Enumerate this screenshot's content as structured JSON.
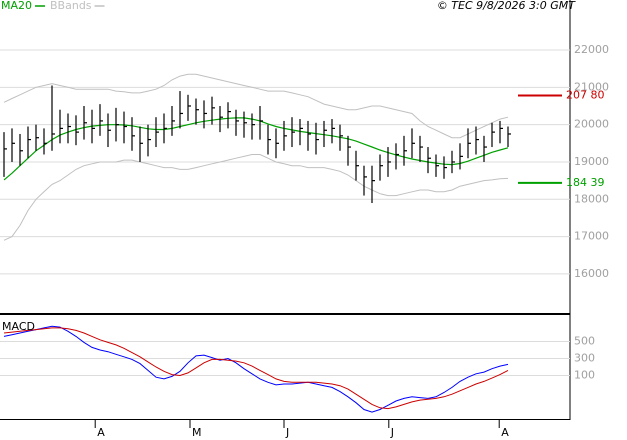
{
  "chart_data": [
    {
      "type": "ohlc",
      "source": "© TEC 9/8/2026 3:0 GMT",
      "x": [
        0,
        1,
        2,
        3,
        4,
        5,
        6,
        7,
        8,
        9,
        10,
        11,
        12,
        13,
        14,
        15,
        16,
        17,
        18,
        19,
        20,
        21,
        22,
        23,
        24,
        25,
        26,
        27,
        28,
        29,
        30,
        31,
        32,
        33,
        34,
        35,
        36,
        37,
        38,
        39,
        40,
        41,
        42,
        43,
        44,
        45,
        46,
        47,
        48,
        49,
        50,
        51,
        52,
        53,
        54,
        55,
        56,
        57,
        58,
        59,
        60,
        61,
        62,
        63
      ],
      "high": [
        19800,
        19900,
        19750,
        19950,
        20000,
        19900,
        21050,
        20400,
        20300,
        20250,
        20500,
        20400,
        20550,
        20300,
        20450,
        20350,
        20200,
        19950,
        20000,
        20200,
        20300,
        20500,
        20900,
        20800,
        20700,
        20650,
        20750,
        20500,
        20600,
        20400,
        20350,
        20300,
        20500,
        20000,
        19900,
        20100,
        20200,
        20150,
        20100,
        20050,
        20100,
        20150,
        20000,
        19700,
        19300,
        18900,
        18900,
        19200,
        19400,
        19500,
        19700,
        19900,
        19700,
        19400,
        19200,
        19150,
        19300,
        19500,
        19900,
        19950,
        19700,
        20050,
        20100,
        19950
      ],
      "low": [
        18600,
        19000,
        18900,
        19100,
        19300,
        19200,
        19300,
        19500,
        19500,
        19450,
        19600,
        19500,
        19700,
        19400,
        19550,
        19500,
        19300,
        19000,
        19150,
        19400,
        19500,
        19700,
        19900,
        20100,
        20000,
        19900,
        20000,
        19800,
        19900,
        19700,
        19650,
        19600,
        19600,
        19200,
        19100,
        19300,
        19400,
        19450,
        19300,
        19200,
        19400,
        19500,
        19300,
        18900,
        18500,
        18100,
        17900,
        18500,
        18600,
        18800,
        18900,
        19100,
        19000,
        18700,
        18600,
        18550,
        18700,
        18800,
        19100,
        19200,
        19000,
        19400,
        19500,
        19400
      ],
      "close": [
        19350,
        19500,
        19300,
        19600,
        19650,
        19500,
        19750,
        19900,
        19950,
        19800,
        20050,
        19900,
        20100,
        19850,
        20000,
        19950,
        19700,
        19500,
        19600,
        19800,
        19900,
        20100,
        20300,
        20500,
        20400,
        20300,
        20450,
        20200,
        20350,
        20100,
        20050,
        20000,
        20100,
        19600,
        19500,
        19700,
        19800,
        19900,
        19750,
        19600,
        19850,
        19900,
        19700,
        19400,
        18900,
        18600,
        18500,
        18900,
        19000,
        19200,
        19300,
        19500,
        19400,
        19100,
        18900,
        18850,
        19000,
        19150,
        19500,
        19600,
        19400,
        19800,
        19900,
        19750
      ],
      "series": [
        {
          "name": "MA20",
          "color": "#00a000",
          "values": [
            18520,
            18700,
            18900,
            19100,
            19300,
            19450,
            19600,
            19720,
            19800,
            19870,
            19920,
            19960,
            19980,
            20000,
            20000,
            19990,
            19970,
            19930,
            19890,
            19870,
            19870,
            19900,
            19950,
            20000,
            20050,
            20090,
            20120,
            20150,
            20170,
            20180,
            20180,
            20150,
            20100,
            20020,
            19950,
            19900,
            19860,
            19820,
            19790,
            19760,
            19730,
            19700,
            19660,
            19620,
            19560,
            19480,
            19400,
            19320,
            19250,
            19190,
            19130,
            19080,
            19040,
            19000,
            18970,
            18940,
            18930,
            18960,
            19020,
            19100,
            19180,
            19260,
            19320,
            19380
          ]
        },
        {
          "name": "BBands",
          "color": "#c0c0c0",
          "upper": [
            20600,
            20700,
            20800,
            20900,
            21000,
            21050,
            21100,
            21050,
            21000,
            20950,
            20950,
            20950,
            20950,
            20950,
            20900,
            20880,
            20850,
            20850,
            20900,
            20950,
            21050,
            21200,
            21300,
            21350,
            21350,
            21300,
            21250,
            21200,
            21150,
            21100,
            21050,
            21000,
            20950,
            20900,
            20900,
            20900,
            20850,
            20800,
            20750,
            20650,
            20550,
            20500,
            20450,
            20400,
            20400,
            20450,
            20500,
            20500,
            20450,
            20400,
            20350,
            20300,
            20100,
            19950,
            19850,
            19750,
            19650,
            19650,
            19750,
            19850,
            19950,
            20050,
            20150,
            20200
          ],
          "lower": [
            16900,
            17000,
            17300,
            17700,
            18000,
            18200,
            18400,
            18500,
            18650,
            18800,
            18900,
            18950,
            19000,
            19000,
            19000,
            19050,
            19050,
            19000,
            18950,
            18900,
            18850,
            18850,
            18800,
            18800,
            18850,
            18900,
            18950,
            19000,
            19050,
            19100,
            19150,
            19200,
            19200,
            19100,
            19000,
            18950,
            18900,
            18900,
            18850,
            18850,
            18850,
            18800,
            18750,
            18650,
            18500,
            18350,
            18250,
            18150,
            18100,
            18100,
            18150,
            18200,
            18250,
            18250,
            18200,
            18200,
            18250,
            18350,
            18400,
            18450,
            18500,
            18520,
            18550,
            18560
          ]
        }
      ],
      "annotations": [
        {
          "value": 20780,
          "label": "207 80",
          "color": "#cc0000"
        },
        {
          "value": 18439,
          "label": "184 39",
          "color": "#00a000"
        }
      ],
      "xlim": [
        -0.5,
        70.75
      ],
      "ylim": [
        14980,
        23340
      ],
      "yticks": [
        16000,
        17000,
        18000,
        19000,
        20000,
        21000,
        22000
      ],
      "grid": true
    },
    {
      "type": "line",
      "title": "MACD",
      "x": [
        0,
        1,
        2,
        3,
        4,
        5,
        6,
        7,
        8,
        9,
        10,
        11,
        12,
        13,
        14,
        15,
        16,
        17,
        18,
        19,
        20,
        21,
        22,
        23,
        24,
        25,
        26,
        27,
        28,
        29,
        30,
        31,
        32,
        33,
        34,
        35,
        36,
        37,
        38,
        39,
        40,
        41,
        42,
        43,
        44,
        45,
        46,
        47,
        48,
        49,
        50,
        51,
        52,
        53,
        54,
        55,
        56,
        57,
        58,
        59,
        60,
        61,
        62,
        63
      ],
      "series": [
        {
          "color": "#0000ff",
          "values": [
            560,
            580,
            600,
            620,
            640,
            660,
            680,
            670,
            620,
            560,
            490,
            430,
            400,
            380,
            350,
            320,
            290,
            240,
            160,
            80,
            60,
            90,
            150,
            250,
            330,
            340,
            310,
            280,
            300,
            250,
            180,
            120,
            60,
            20,
            -10,
            0,
            0,
            10,
            20,
            0,
            -20,
            -40,
            -90,
            -150,
            -220,
            -300,
            -330,
            -300,
            -250,
            -200,
            -170,
            -150,
            -160,
            -170,
            -150,
            -100,
            -40,
            30,
            80,
            120,
            140,
            180,
            210,
            230
          ]
        },
        {
          "color": "#cc0000",
          "values": [
            600,
            610,
            620,
            630,
            640,
            650,
            660,
            660,
            650,
            630,
            600,
            560,
            520,
            490,
            460,
            420,
            370,
            320,
            260,
            200,
            150,
            110,
            100,
            130,
            190,
            250,
            290,
            290,
            280,
            270,
            250,
            210,
            160,
            110,
            60,
            30,
            20,
            20,
            20,
            20,
            10,
            0,
            -20,
            -60,
            -120,
            -180,
            -240,
            -280,
            -290,
            -270,
            -240,
            -210,
            -190,
            -180,
            -170,
            -150,
            -120,
            -80,
            -40,
            0,
            30,
            70,
            110,
            160
          ]
        }
      ],
      "xlim": [
        -0.5,
        70.75
      ],
      "ylim": [
        -400,
        800
      ],
      "yticks": [
        100,
        300,
        500
      ],
      "grid": true,
      "xticks": [
        {
          "value": 11.4,
          "label": "A"
        },
        {
          "value": 23.25,
          "label": "M"
        },
        {
          "value": 35,
          "label": "J"
        },
        {
          "value": 48.1,
          "label": "J"
        },
        {
          "value": 61.9,
          "label": "A"
        }
      ]
    }
  ]
}
